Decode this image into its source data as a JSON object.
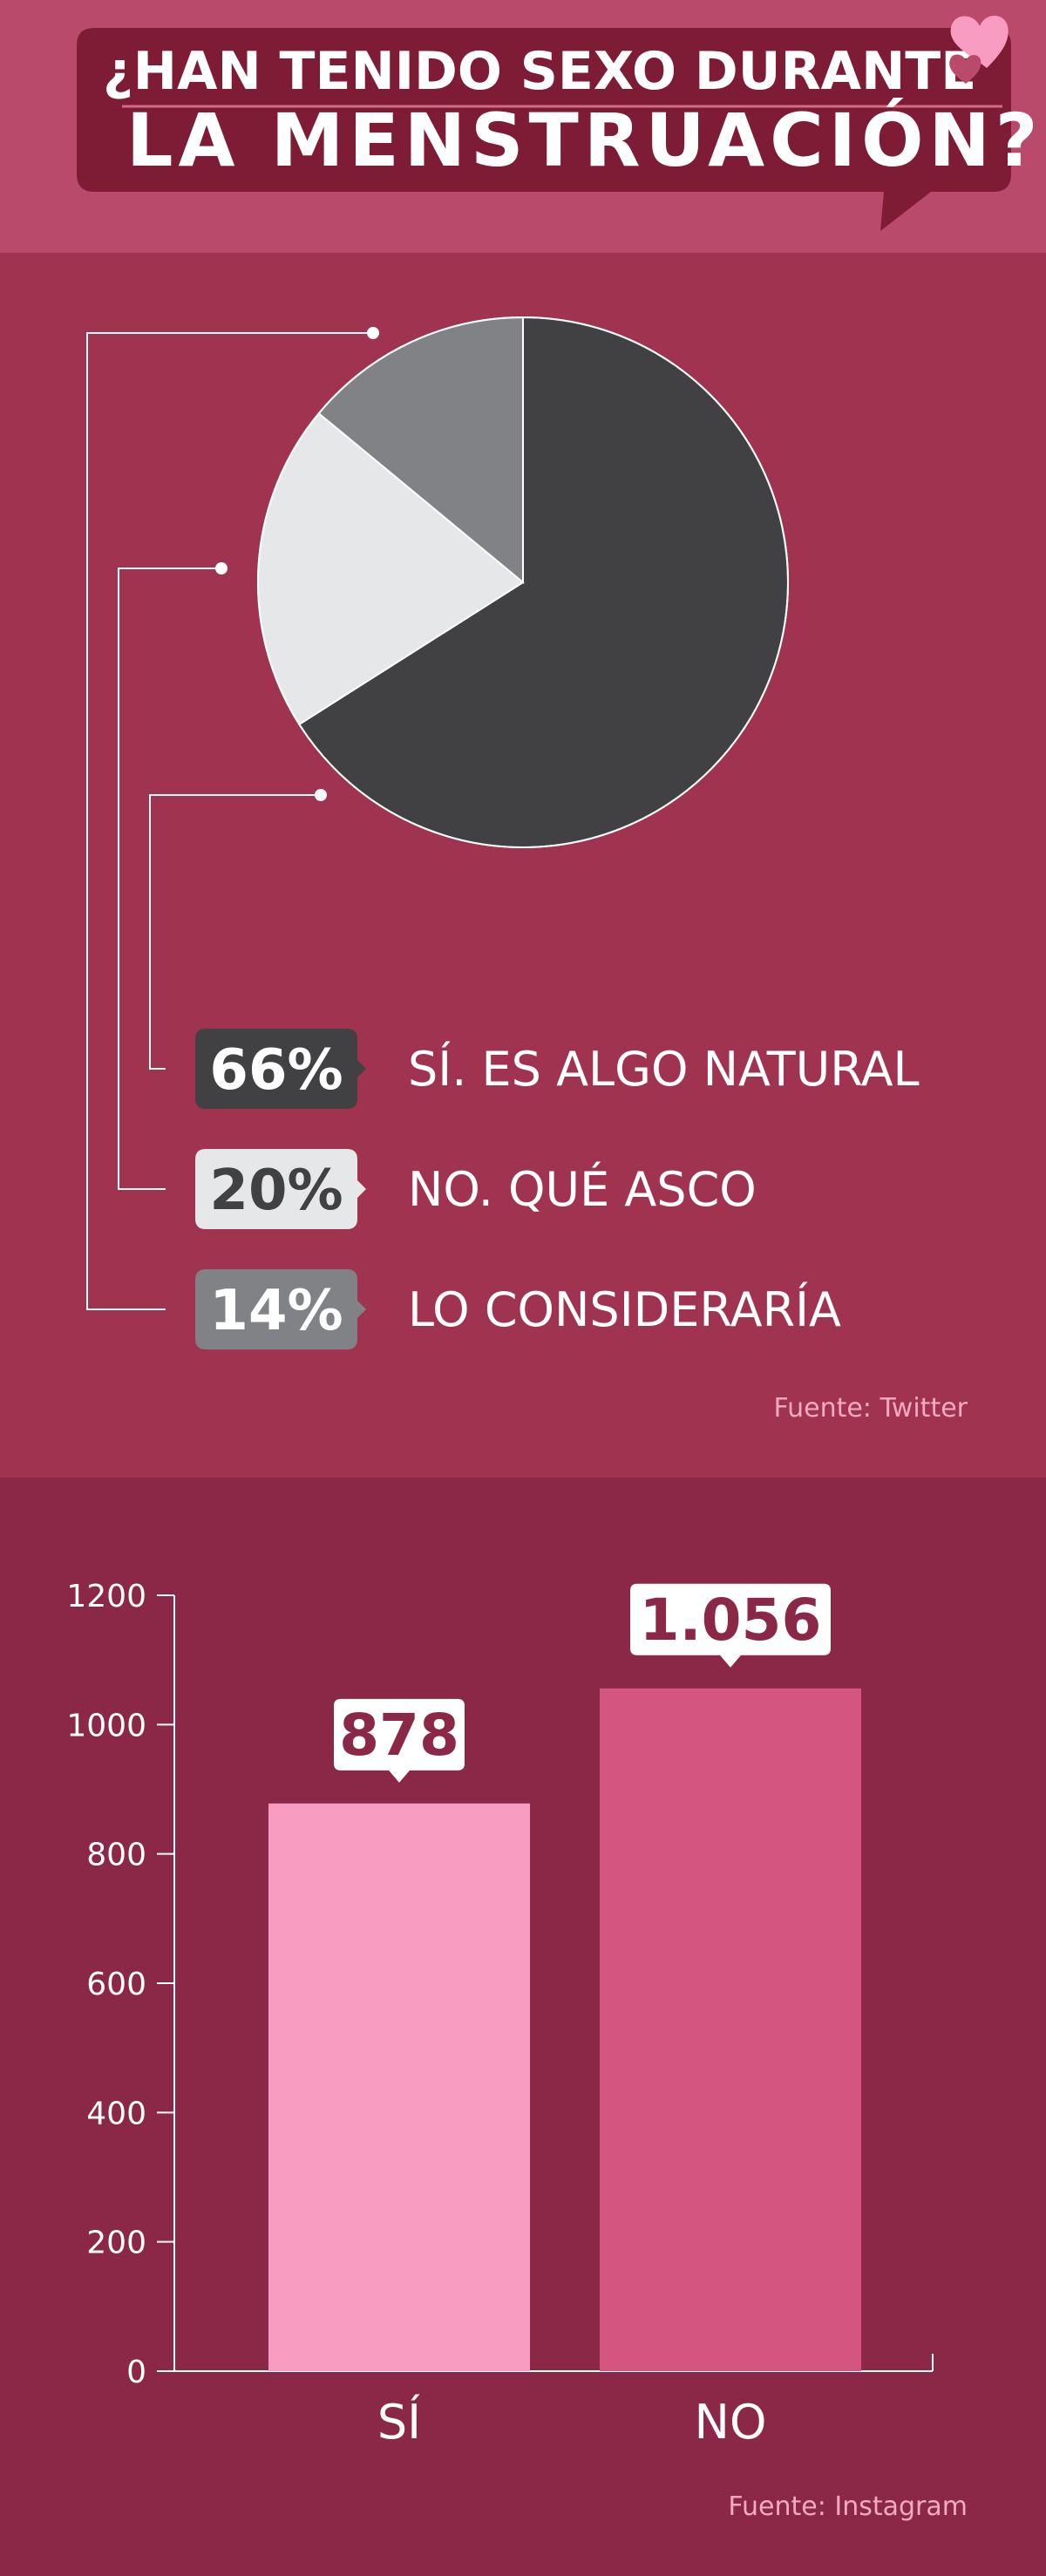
{
  "header": {
    "title_line1": "¿HAN TENIDO SEXO DURANTE",
    "title_line2": "LA MENSTRUACIÓN?"
  },
  "chart_data": [
    {
      "type": "pie",
      "slices": [
        {
          "label": "SÍ. ES ALGO NATURAL",
          "value": 66,
          "display": "66%",
          "color": "#414143",
          "text_color": "#ffffff"
        },
        {
          "label": "NO. QUÉ ASCO",
          "value": 20,
          "display": "20%",
          "color": "#e6e7e8",
          "text_color": "#414143"
        },
        {
          "label": "LO CONSIDERARÍA",
          "value": 14,
          "display": "14%",
          "color": "#808285",
          "text_color": "#ffffff"
        }
      ],
      "source": "Fuente: Twitter"
    },
    {
      "type": "bar",
      "categories": [
        "SÍ",
        "NO"
      ],
      "values": [
        878,
        1056
      ],
      "value_labels": [
        "878",
        "1.056"
      ],
      "colors": [
        "#f99cc1",
        "#d35580"
      ],
      "ylim": [
        0,
        1200
      ],
      "yticks": [
        "0",
        "200",
        "400",
        "600",
        "800",
        "1000",
        "1200"
      ],
      "source": "Fuente: Instagram"
    }
  ],
  "colors": {
    "header_bg": "#b94a6b",
    "title_box": "#7e1c36",
    "pie_section_bg": "#a03350",
    "bar_section_bg": "#8b2848",
    "heart": "#f99cc1"
  }
}
